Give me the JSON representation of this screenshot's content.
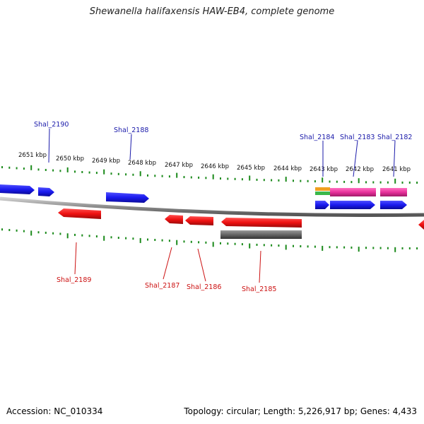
{
  "title": "Shewanella halifaxensis HAW-EB4, complete genome",
  "footer": {
    "accession": "Accession: NC_010334",
    "summary": "Topology: circular; Length: 5,226,917 bp; Genes: 4,433"
  },
  "colors": {
    "forward_gene": "#1a1aee",
    "reverse_gene": "#ee1111",
    "rna_gene": "#e8309a",
    "other_gene": "#666666",
    "ticks": "#1b8a1b",
    "backbone": "#8a8a8a",
    "label_forward": "#1a1aaa",
    "label_reverse": "#cc1111"
  },
  "scale_labels": [
    "2651 kbp",
    "2650 kbp",
    "2649 kbp",
    "2648 kbp",
    "2647 kbp",
    "2646 kbp",
    "2645 kbp",
    "2644 kbp",
    "2643 kbp",
    "2642 kbp",
    "2641 kbp"
  ],
  "genes_forward": [
    {
      "label": "Shal_2190"
    },
    {
      "label": "Shal_2188"
    },
    {
      "label": "Shal_2184"
    },
    {
      "label": "Shal_2183"
    },
    {
      "label": "Shal_2182"
    }
  ],
  "genes_reverse": [
    {
      "label": "Shal_2189"
    },
    {
      "label": "Shal_2187"
    },
    {
      "label": "Shal_2186"
    },
    {
      "label": "Shal_2185"
    }
  ]
}
